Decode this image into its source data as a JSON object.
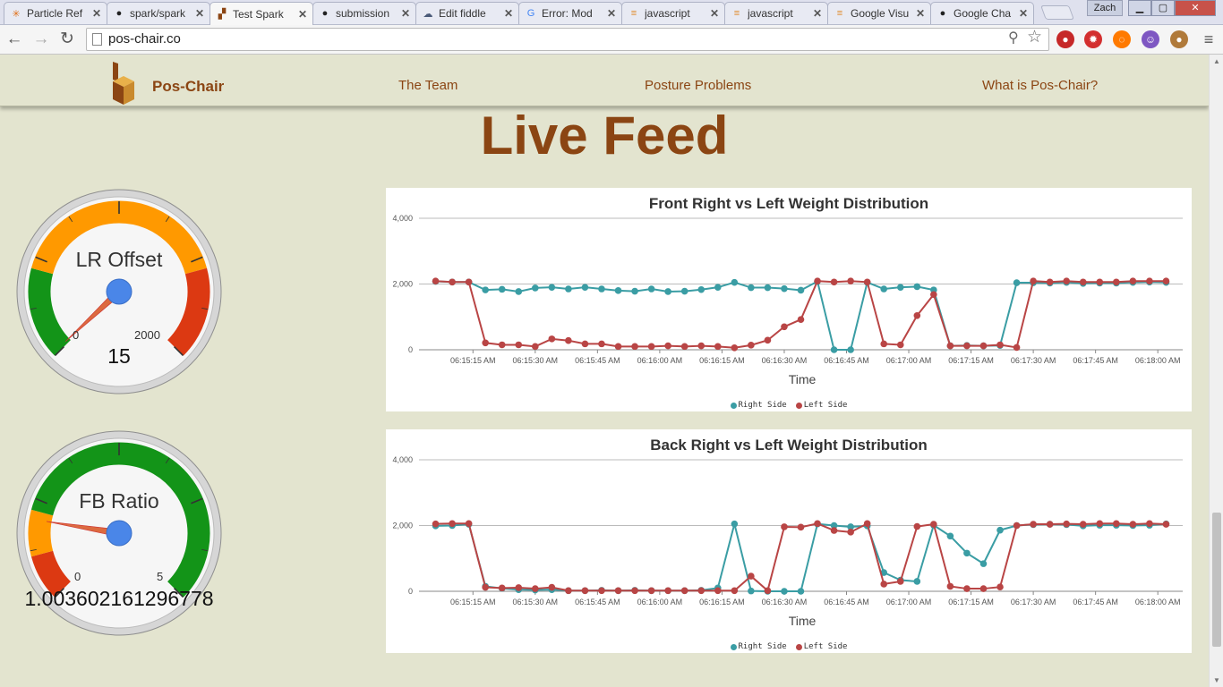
{
  "browser": {
    "tabs": [
      {
        "label": "Particle Ref",
        "icon": "particle-icon",
        "active": false
      },
      {
        "label": "spark/spark",
        "icon": "github-icon",
        "active": false
      },
      {
        "label": "Test Spark",
        "icon": "pos-chair-icon",
        "active": true
      },
      {
        "label": "submission",
        "icon": "github-icon",
        "active": false
      },
      {
        "label": "Edit fiddle",
        "icon": "jsfiddle-icon",
        "active": false
      },
      {
        "label": "Error: Mod",
        "icon": "google-icon",
        "active": false
      },
      {
        "label": "javascript",
        "icon": "stackoverflow-icon",
        "active": false
      },
      {
        "label": "javascript",
        "icon": "stackoverflow-icon",
        "active": false
      },
      {
        "label": "Google Visu",
        "icon": "stackoverflow-icon",
        "active": false
      },
      {
        "label": "Google Cha",
        "icon": "github-icon",
        "active": false
      }
    ],
    "user": "Zach",
    "url": "pos-chair.co"
  },
  "site": {
    "brand": "Pos-Chair",
    "nav": [
      "The Team",
      "Posture Problems",
      "What is Pos-Chair?"
    ],
    "title": "Live Feed"
  },
  "gauges": [
    {
      "label": "LR Offset",
      "min": "0",
      "max": "2000",
      "value": "15",
      "needle_fraction": 0.0075
    },
    {
      "label": "FB Ratio",
      "min": "0",
      "max": "5",
      "value": "1.003602161296778",
      "needle_fraction": 0.2007
    }
  ],
  "colors": {
    "right": "#3a9da4",
    "left": "#b94545",
    "brand": "#8b4513",
    "green": "#139418",
    "orange": "#ff9900",
    "red": "#dc3912",
    "needle": "#dc6a3f"
  },
  "chart_data": [
    {
      "type": "line",
      "title": "Front Right vs Left Weight Distribution",
      "xlabel": "Time",
      "ylabel": "",
      "ylim": [
        0,
        4000
      ],
      "yticks": [
        "0",
        "2,000",
        "4,000"
      ],
      "xticks": [
        "06:15:15 AM",
        "06:15:30 AM",
        "06:15:45 AM",
        "06:16:00 AM",
        "06:16:15 AM",
        "06:16:30 AM",
        "06:16:45 AM",
        "06:17:00 AM",
        "06:17:15 AM",
        "06:17:30 AM",
        "06:17:45 AM",
        "06:18:00 AM"
      ],
      "x": [
        "06:15:06",
        "06:15:10",
        "06:15:14",
        "06:15:18",
        "06:15:22",
        "06:15:26",
        "06:15:30",
        "06:15:34",
        "06:15:38",
        "06:15:42",
        "06:15:46",
        "06:15:50",
        "06:15:54",
        "06:15:58",
        "06:16:02",
        "06:16:06",
        "06:16:10",
        "06:16:14",
        "06:16:18",
        "06:16:22",
        "06:16:26",
        "06:16:30",
        "06:16:34",
        "06:16:38",
        "06:16:42",
        "06:16:46",
        "06:16:50",
        "06:16:54",
        "06:16:58",
        "06:17:02",
        "06:17:06",
        "06:17:10",
        "06:17:14",
        "06:17:18",
        "06:17:22",
        "06:17:26",
        "06:17:30",
        "06:17:34",
        "06:17:38",
        "06:17:42",
        "06:17:46",
        "06:17:50",
        "06:17:54",
        "06:17:58",
        "06:18:02"
      ],
      "series": [
        {
          "name": "Right Side",
          "color": "#3a9da4",
          "values": [
            2080,
            2060,
            2060,
            1820,
            1840,
            1770,
            1880,
            1900,
            1850,
            1900,
            1850,
            1800,
            1780,
            1850,
            1770,
            1780,
            1830,
            1900,
            2050,
            1890,
            1890,
            1860,
            1810,
            2080,
            0,
            0,
            2050,
            1850,
            1900,
            1920,
            1820,
            120,
            130,
            120,
            130,
            2040,
            2040,
            2030,
            2050,
            2020,
            2030,
            2030,
            2050,
            2060,
            2050
          ]
        },
        {
          "name": "Left Side",
          "color": "#b94545",
          "values": [
            2090,
            2060,
            2060,
            210,
            150,
            150,
            100,
            330,
            280,
            180,
            180,
            100,
            100,
            100,
            120,
            100,
            120,
            100,
            60,
            140,
            290,
            700,
            920,
            2090,
            2060,
            2090,
            2060,
            180,
            150,
            1040,
            1680,
            120,
            120,
            120,
            150,
            70,
            2090,
            2060,
            2090,
            2060,
            2060,
            2060,
            2090,
            2090,
            2090
          ]
        }
      ]
    },
    {
      "type": "line",
      "title": "Back Right vs Left Weight Distribution",
      "xlabel": "Time",
      "ylabel": "",
      "ylim": [
        0,
        4000
      ],
      "yticks": [
        "0",
        "2,000",
        "4,000"
      ],
      "xticks": [
        "06:15:15 AM",
        "06:15:30 AM",
        "06:15:45 AM",
        "06:16:00 AM",
        "06:16:15 AM",
        "06:16:30 AM",
        "06:16:45 AM",
        "06:17:00 AM",
        "06:17:15 AM",
        "06:17:30 AM",
        "06:17:45 AM",
        "06:18:00 AM"
      ],
      "x": [
        "06:15:06",
        "06:15:10",
        "06:15:14",
        "06:15:18",
        "06:15:22",
        "06:15:26",
        "06:15:30",
        "06:15:34",
        "06:15:38",
        "06:15:42",
        "06:15:46",
        "06:15:50",
        "06:15:54",
        "06:15:58",
        "06:16:02",
        "06:16:06",
        "06:16:10",
        "06:16:14",
        "06:16:18",
        "06:16:22",
        "06:16:26",
        "06:16:30",
        "06:16:34",
        "06:16:38",
        "06:16:42",
        "06:16:46",
        "06:16:50",
        "06:16:54",
        "06:16:58",
        "06:17:02",
        "06:17:06",
        "06:17:10",
        "06:17:14",
        "06:17:18",
        "06:17:22",
        "06:17:26",
        "06:17:30",
        "06:17:34",
        "06:17:38",
        "06:17:42",
        "06:17:46",
        "06:17:50",
        "06:17:54",
        "06:17:58",
        "06:18:02"
      ],
      "series": [
        {
          "name": "Right Side",
          "color": "#3a9da4",
          "values": [
            1990,
            2000,
            2040,
            150,
            90,
            50,
            40,
            50,
            20,
            20,
            30,
            20,
            30,
            20,
            20,
            20,
            30,
            100,
            2050,
            10,
            0,
            0,
            0,
            2050,
            2000,
            1960,
            1990,
            570,
            340,
            300,
            2010,
            1680,
            1160,
            840,
            1860,
            2000,
            2030,
            2040,
            2030,
            1990,
            2010,
            2010,
            2000,
            2010,
            2050
          ]
        },
        {
          "name": "Left Side",
          "color": "#b94545",
          "values": [
            2050,
            2060,
            2060,
            120,
            100,
            110,
            80,
            120,
            20,
            20,
            20,
            20,
            20,
            20,
            20,
            20,
            20,
            20,
            20,
            460,
            20,
            1960,
            1950,
            2060,
            1850,
            1800,
            2060,
            220,
            300,
            1970,
            2040,
            150,
            80,
            80,
            130,
            2000,
            2040,
            2040,
            2050,
            2040,
            2060,
            2060,
            2040,
            2060,
            2040
          ]
        }
      ]
    }
  ]
}
